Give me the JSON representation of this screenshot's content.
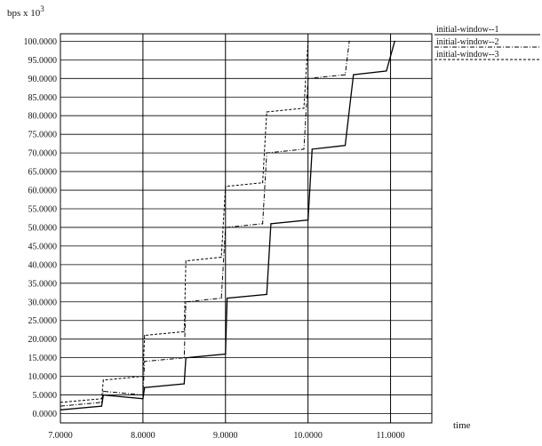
{
  "chart_data": {
    "type": "line",
    "title": "",
    "xlabel": "time",
    "ylabel": "bps x 10",
    "ylabel_exponent": "3",
    "xlim": [
      7.0,
      11.5
    ],
    "ylim": [
      -2.5,
      102
    ],
    "xticks": [
      7.0,
      8.0,
      9.0,
      10.0,
      11.0
    ],
    "xtick_labels": [
      "7.0000",
      "8.0000",
      "9.0000",
      "10.0000",
      "11.0000"
    ],
    "yticks": [
      0,
      5,
      10,
      15,
      20,
      25,
      30,
      35,
      40,
      45,
      50,
      55,
      60,
      65,
      70,
      75,
      80,
      85,
      90,
      95,
      100
    ],
    "ytick_labels": [
      "0.0000",
      "5.0000",
      "10.0000",
      "15.0000",
      "20.0000",
      "25.0000",
      "30.0000",
      "35.0000",
      "40.0000",
      "45.0000",
      "50.0000",
      "55.0000",
      "60.0000",
      "65.0000",
      "70.0000",
      "75.0000",
      "80.0000",
      "85.0000",
      "90.0000",
      "95.0000",
      "100.0000"
    ],
    "grid": true,
    "legend_position": "top-right outside",
    "series": [
      {
        "name": "initial-window--1",
        "style": "solid",
        "points": [
          [
            7.0,
            1
          ],
          [
            7.5,
            2
          ],
          [
            7.52,
            5
          ],
          [
            8.0,
            4
          ],
          [
            8.02,
            7
          ],
          [
            8.5,
            8
          ],
          [
            8.52,
            15
          ],
          [
            9.0,
            16
          ],
          [
            9.02,
            31
          ],
          [
            9.5,
            32
          ],
          [
            9.55,
            51
          ],
          [
            10.0,
            52
          ],
          [
            10.05,
            71
          ],
          [
            10.45,
            72
          ],
          [
            10.55,
            91
          ],
          [
            10.95,
            92
          ],
          [
            11.05,
            100
          ]
        ]
      },
      {
        "name": "initial-window--2",
        "style": "dash-dot",
        "points": [
          [
            7.0,
            2
          ],
          [
            7.5,
            3
          ],
          [
            7.52,
            6
          ],
          [
            8.0,
            5
          ],
          [
            8.02,
            14
          ],
          [
            8.5,
            15
          ],
          [
            8.52,
            30
          ],
          [
            8.95,
            31
          ],
          [
            9.0,
            50
          ],
          [
            9.45,
            51
          ],
          [
            9.5,
            70
          ],
          [
            9.95,
            71
          ],
          [
            10.0,
            90
          ],
          [
            10.45,
            91
          ],
          [
            10.5,
            100
          ]
        ]
      },
      {
        "name": "initial-window--3",
        "style": "dashed",
        "points": [
          [
            7.0,
            3
          ],
          [
            7.5,
            4
          ],
          [
            7.52,
            9
          ],
          [
            8.0,
            10
          ],
          [
            8.02,
            21
          ],
          [
            8.5,
            22
          ],
          [
            8.52,
            41
          ],
          [
            8.95,
            42
          ],
          [
            9.0,
            61
          ],
          [
            9.45,
            62
          ],
          [
            9.5,
            81
          ],
          [
            9.95,
            82
          ],
          [
            10.0,
            100
          ]
        ]
      }
    ]
  }
}
